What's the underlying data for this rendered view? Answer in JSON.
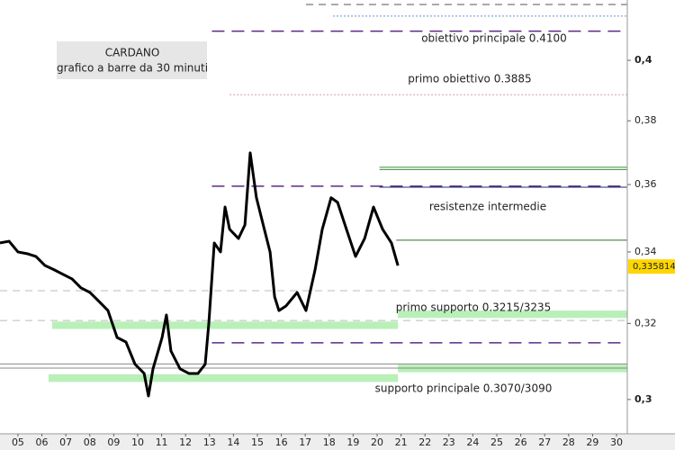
{
  "chart_data": {
    "type": "line",
    "title": "CARDANO",
    "subtitle": "grafico a barre da 30 minuti",
    "log_scale": true,
    "xlim": [
      4.25,
      30.45
    ],
    "ylim": [
      0.2914,
      0.421
    ],
    "xticks": [
      {
        "value": 5,
        "label": "05"
      },
      {
        "value": 6,
        "label": "06"
      },
      {
        "value": 7,
        "label": "07"
      },
      {
        "value": 8,
        "label": "08"
      },
      {
        "value": 9,
        "label": "09"
      },
      10,
      11,
      12,
      13,
      14,
      15,
      16,
      17,
      18,
      19,
      20,
      21,
      22,
      23,
      24,
      25,
      26,
      27,
      28,
      29,
      30
    ],
    "yticks": [
      {
        "value": 0.3,
        "label": "0,3"
      },
      {
        "value": 0.32,
        "label": "0,32"
      },
      {
        "value": 0.34,
        "label": "0,34"
      },
      {
        "value": 0.36,
        "label": "0,36"
      },
      {
        "value": 0.38,
        "label": "0,38"
      },
      {
        "value": 0.4,
        "label": "0,4"
      }
    ],
    "x": [
      4.25,
      4.63,
      5.0,
      5.38,
      5.75,
      6.13,
      6.51,
      6.88,
      7.26,
      7.63,
      8.01,
      8.39,
      8.76,
      9.14,
      9.51,
      9.89,
      10.27,
      10.45,
      10.64,
      11.02,
      11.2,
      11.39,
      11.77,
      12.14,
      12.52,
      12.82,
      12.97,
      13.2,
      13.46,
      13.65,
      13.84,
      14.21,
      14.48,
      14.7,
      14.96,
      15.34,
      15.53,
      15.72,
      15.9,
      16.2,
      16.66,
      17.03,
      17.41,
      17.71,
      18.08,
      18.35,
      18.72,
      19.1,
      19.48,
      19.85,
      20.23,
      20.6,
      20.87
    ],
    "series": [
      {
        "color": "#000000",
        "values": [
          0.3426,
          0.3431,
          0.34,
          0.3395,
          0.3387,
          0.3361,
          0.3349,
          0.3336,
          0.3323,
          0.3298,
          0.3285,
          0.326,
          0.3235,
          0.3162,
          0.315,
          0.3091,
          0.3067,
          0.3009,
          0.3079,
          0.3162,
          0.3223,
          0.3126,
          0.3079,
          0.3067,
          0.3067,
          0.3091,
          0.3199,
          0.3426,
          0.34,
          0.3532,
          0.3466,
          0.3439,
          0.3479,
          0.3698,
          0.356,
          0.3452,
          0.34,
          0.3273,
          0.3235,
          0.3248,
          0.3285,
          0.3235,
          0.3349,
          0.3466,
          0.356,
          0.3546,
          0.3466,
          0.3387,
          0.3439,
          0.3532,
          0.3466,
          0.3426,
          0.3361
        ]
      }
    ],
    "last_value": {
      "value": 0.335814,
      "label": "0,335814"
    },
    "levels": [
      {
        "value": 0.4194,
        "color": "#555555",
        "style": "dashed",
        "from": 17.03
      },
      {
        "value": 0.4153,
        "color": "#6a8fc8",
        "style": "dotted",
        "from": 18.16
      },
      {
        "value": 0.41,
        "color": "#5b2a86",
        "style": "longdash",
        "from": 13.1
      },
      {
        "value": 0.3885,
        "color": "#d49ab0",
        "style": "dotted",
        "from": 13.84
      },
      {
        "value": 0.3653,
        "color": "#3a8a3a",
        "style": "solid",
        "from": 20.1
      },
      {
        "value": 0.3646,
        "color": "#3a8a3a",
        "style": "solid",
        "from": 20.1
      },
      {
        "value": 0.3595,
        "color": "#5b2a86",
        "style": "longdash",
        "from": 13.1
      },
      {
        "value": 0.3592,
        "color": "#1f2f6f",
        "style": "solid",
        "from": 20.1
      },
      {
        "value": 0.3434,
        "color": "#2f6f2f",
        "style": "solid",
        "from": 20.8
      },
      {
        "value": 0.329,
        "color": "#bbbbbb",
        "style": "dashed",
        "from": 4.25
      },
      {
        "value": 0.3208,
        "color": "#bbbbbb",
        "style": "dashed",
        "from": 4.25
      },
      {
        "value": 0.3148,
        "color": "#5b2a86",
        "style": "longdash",
        "from": 13.1
      },
      {
        "value": 0.3092,
        "color": "#888888",
        "style": "solid",
        "from": 4.25
      },
      {
        "value": 0.3081,
        "color": "#888888",
        "style": "solid",
        "from": 4.25
      }
    ],
    "zones": [
      {
        "from": 6.43,
        "to": 20.87,
        "low": 0.3185,
        "high": 0.3205,
        "color": "#b8f0b8"
      },
      {
        "from": 20.87,
        "to": 30.45,
        "low": 0.3215,
        "high": 0.3235,
        "color": "#b8f0b8"
      },
      {
        "from": 6.28,
        "to": 20.87,
        "low": 0.3045,
        "high": 0.3065,
        "color": "#b8f0b8"
      },
      {
        "from": 20.87,
        "to": 30.45,
        "low": 0.307,
        "high": 0.309,
        "color": "#b8f0b8"
      }
    ],
    "annotations": [
      "obiettivo principale 0.4100",
      "primo obiettivo 0.3885",
      "resistenze intermedie",
      "primo supporto 0.3215/3235",
      "supporto principale 0.3070/3090"
    ]
  }
}
